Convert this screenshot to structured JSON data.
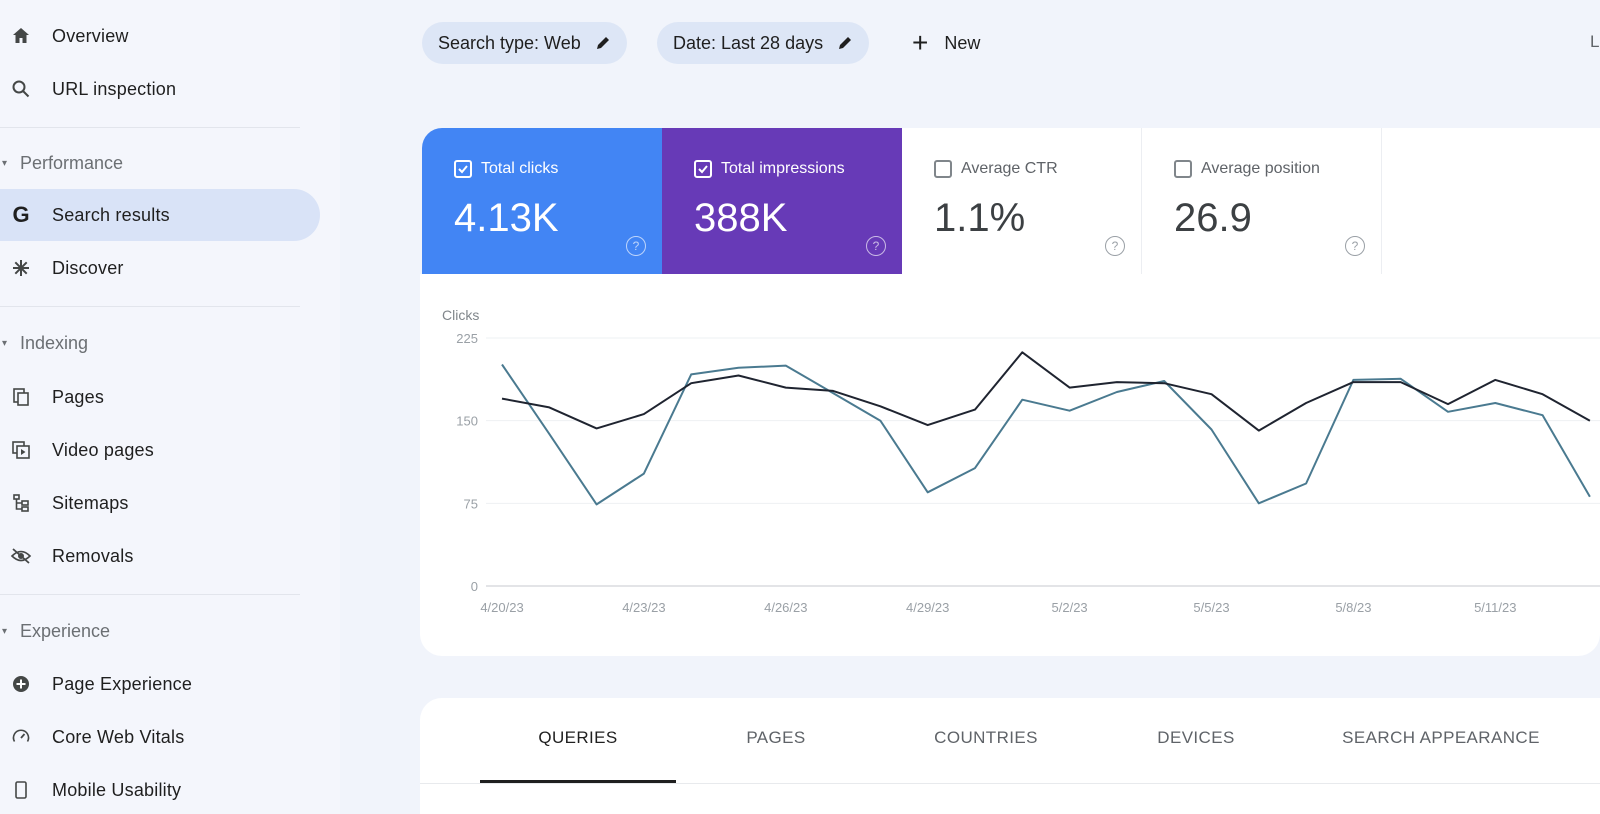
{
  "sidebar": {
    "top_items": [
      {
        "label": "Overview",
        "icon": "home-icon"
      },
      {
        "label": "URL inspection",
        "icon": "search-icon"
      }
    ],
    "sections": [
      {
        "title": "Performance",
        "items": [
          {
            "label": "Search results",
            "icon": "google-g-icon",
            "active": true
          },
          {
            "label": "Discover",
            "icon": "asterisk-icon"
          }
        ]
      },
      {
        "title": "Indexing",
        "items": [
          {
            "label": "Pages",
            "icon": "pages-icon"
          },
          {
            "label": "Video pages",
            "icon": "video-pages-icon"
          },
          {
            "label": "Sitemaps",
            "icon": "sitemap-icon"
          },
          {
            "label": "Removals",
            "icon": "eye-off-icon"
          }
        ]
      },
      {
        "title": "Experience",
        "items": [
          {
            "label": "Page Experience",
            "icon": "plus-circle-icon"
          },
          {
            "label": "Core Web Vitals",
            "icon": "gauge-icon"
          },
          {
            "label": "Mobile Usability",
            "icon": "phone-icon"
          }
        ]
      }
    ]
  },
  "filters": {
    "search_type": "Search type: Web",
    "date": "Date: Last 28 days",
    "new_label": "New",
    "last_updated_fragment": "L"
  },
  "metrics": [
    {
      "label": "Total clicks",
      "value": "4.13K",
      "checked": true,
      "color": "#4285f4"
    },
    {
      "label": "Total impressions",
      "value": "388K",
      "checked": true,
      "color": "#673ab7"
    },
    {
      "label": "Average CTR",
      "value": "1.1%",
      "checked": false
    },
    {
      "label": "Average position",
      "value": "26.9",
      "checked": false
    }
  ],
  "chart_data": {
    "type": "line",
    "ylabel": "Clicks",
    "ylim": [
      0,
      225
    ],
    "yticks": [
      0,
      75,
      150,
      225
    ],
    "x_tick_labels": [
      "4/20/23",
      "4/23/23",
      "4/26/23",
      "4/29/23",
      "5/2/23",
      "5/5/23",
      "5/8/23",
      "5/11/23"
    ],
    "x": [
      "4/20/23",
      "4/21/23",
      "4/22/23",
      "4/23/23",
      "4/24/23",
      "4/25/23",
      "4/26/23",
      "4/27/23",
      "4/28/23",
      "4/29/23",
      "4/30/23",
      "5/1/23",
      "5/2/23",
      "5/3/23",
      "5/4/23",
      "5/5/23",
      "5/6/23",
      "5/7/23",
      "5/8/23",
      "5/9/23",
      "5/10/23",
      "5/11/23",
      "5/12/23",
      "5/13/23"
    ],
    "series": [
      {
        "color": "#4a7a90",
        "values": [
          201,
          138,
          74,
          102,
          192,
          198,
          200,
          175,
          150,
          85,
          107,
          169,
          159,
          176,
          186,
          142,
          75,
          93,
          187,
          188,
          158,
          166,
          155,
          81
        ]
      },
      {
        "color": "#1f2430",
        "values": [
          170,
          162,
          143,
          156,
          184,
          191,
          180,
          177,
          163,
          146,
          160,
          212,
          180,
          185,
          184,
          174,
          141,
          166,
          185,
          185,
          165,
          187,
          174,
          150
        ]
      }
    ],
    "grid": true
  },
  "tabs": [
    "QUERIES",
    "PAGES",
    "COUNTRIES",
    "DEVICES",
    "SEARCH APPEARANCE"
  ],
  "colors": {
    "clicks": "#4285f4",
    "impressions": "#673ab7",
    "active_nav": "#d9e3f7"
  }
}
